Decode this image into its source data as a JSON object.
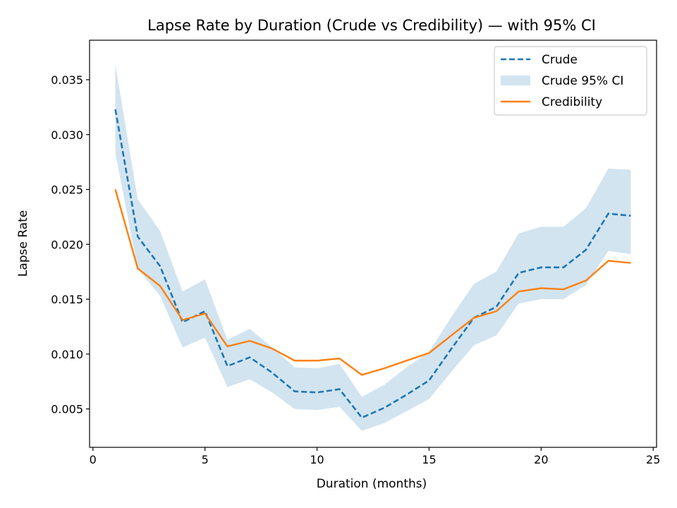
{
  "chart_data": {
    "type": "line",
    "title": "Lapse Rate by Duration (Crude vs Credibility) — with 95% CI",
    "xlabel": "Duration (months)",
    "ylabel": "Lapse Rate",
    "xlim": [
      -0.15,
      25.15
    ],
    "ylim": [
      0.0015,
      0.0386
    ],
    "xticks": [
      0,
      5,
      10,
      15,
      20,
      25
    ],
    "xtick_labels": [
      "0",
      "5",
      "10",
      "15",
      "20",
      "25"
    ],
    "yticks": [
      0.005,
      0.01,
      0.015,
      0.02,
      0.025,
      0.03,
      0.035
    ],
    "ytick_labels": [
      "0.005",
      "0.010",
      "0.015",
      "0.020",
      "0.025",
      "0.030",
      "0.035"
    ],
    "grid": false,
    "legend_position": "top-right",
    "x": [
      1,
      2,
      3,
      4,
      5,
      6,
      7,
      8,
      9,
      10,
      11,
      12,
      13,
      14,
      15,
      16,
      17,
      18,
      19,
      20,
      21,
      22,
      23,
      24
    ],
    "series": [
      {
        "name": "Crude",
        "style": "dashed",
        "color": "#1f77b4",
        "values": [
          0.0323,
          0.0207,
          0.018,
          0.0129,
          0.0139,
          0.0089,
          0.0097,
          0.0083,
          0.0066,
          0.0065,
          0.0068,
          0.0042,
          0.0051,
          0.0063,
          0.0076,
          0.0105,
          0.0133,
          0.0143,
          0.0174,
          0.0179,
          0.0179,
          0.0195,
          0.0228,
          0.0226
        ]
      },
      {
        "name": "Crude 95% CI",
        "style": "band",
        "color": "#1f77b4",
        "opacity": 0.2,
        "lower": [
          0.0283,
          0.0178,
          0.0153,
          0.0106,
          0.0115,
          0.007,
          0.0077,
          0.0065,
          0.005,
          0.0049,
          0.0052,
          0.003,
          0.0037,
          0.0048,
          0.0059,
          0.0084,
          0.0108,
          0.0117,
          0.0146,
          0.015,
          0.015,
          0.0163,
          0.0194,
          0.0191
        ],
        "upper": [
          0.0364,
          0.0241,
          0.0212,
          0.0157,
          0.0168,
          0.0113,
          0.0123,
          0.0106,
          0.0088,
          0.0087,
          0.0091,
          0.0061,
          0.0072,
          0.0088,
          0.0102,
          0.0134,
          0.0164,
          0.0175,
          0.021,
          0.0216,
          0.0216,
          0.0233,
          0.0269,
          0.0268
        ]
      },
      {
        "name": "Credibility",
        "style": "solid",
        "color": "#ff7f0e",
        "values": [
          0.025,
          0.0178,
          0.0162,
          0.0131,
          0.0137,
          0.0107,
          0.0112,
          0.0105,
          0.0094,
          0.0094,
          0.0096,
          0.0081,
          0.0087,
          0.0094,
          0.0101,
          0.0117,
          0.0133,
          0.0139,
          0.0157,
          0.016,
          0.0159,
          0.0167,
          0.0185,
          0.0183
        ]
      }
    ]
  }
}
